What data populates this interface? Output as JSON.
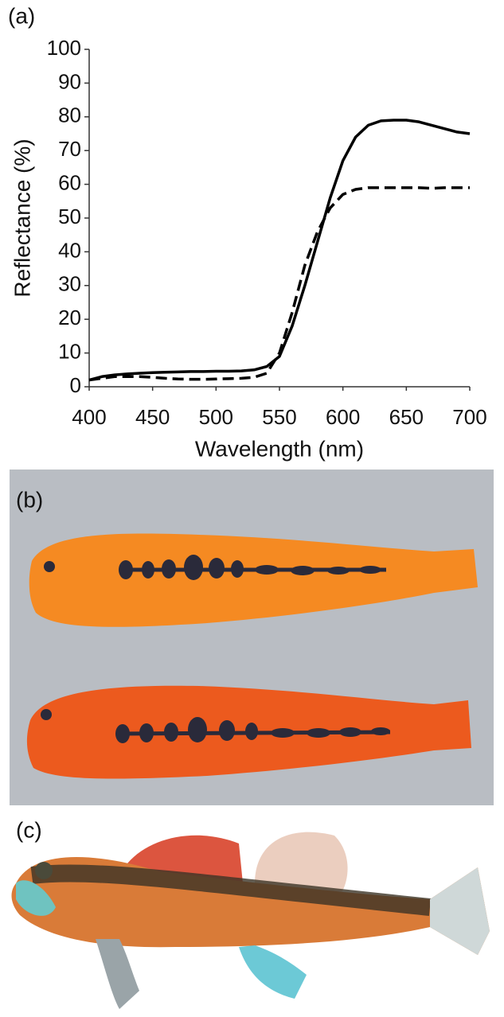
{
  "panel_labels": [
    "(a)",
    "(b)",
    "(c)"
  ],
  "chart_data": {
    "type": "line",
    "x_label": "Wavelength (nm)",
    "y_label": "Reflectance (%)",
    "x": [
      400,
      410,
      420,
      430,
      440,
      450,
      460,
      470,
      480,
      490,
      500,
      510,
      520,
      530,
      540,
      550,
      560,
      570,
      580,
      590,
      600,
      610,
      620,
      630,
      640,
      650,
      660,
      670,
      680,
      690,
      700
    ],
    "series": [
      {
        "color": "#000000",
        "line_style": "solid",
        "values": [
          2,
          3,
          3.5,
          3.8,
          4,
          4.2,
          4.3,
          4.4,
          4.5,
          4.5,
          4.6,
          4.6,
          4.7,
          5,
          6,
          9,
          18,
          30,
          43,
          56,
          67,
          74,
          77.5,
          78.8,
          79,
          79,
          78.5,
          77.5,
          76.5,
          75.5,
          75
        ]
      },
      {
        "color": "#000000",
        "line_style": "dashed",
        "values": [
          2,
          2.5,
          3,
          3,
          3,
          2.8,
          2.5,
          2.3,
          2.2,
          2.2,
          2.3,
          2.4,
          2.5,
          2.8,
          4,
          10,
          22,
          36,
          46,
          53,
          57,
          58.5,
          59,
          59,
          59,
          59,
          59,
          58.8,
          59,
          59,
          59
        ]
      }
    ],
    "xlim": [
      400,
      700
    ],
    "xticks": [
      400,
      450,
      500,
      550,
      600,
      650,
      700
    ],
    "ylim": [
      0,
      100
    ],
    "yticks": [
      0,
      10,
      20,
      30,
      40,
      50,
      60,
      70,
      80,
      90,
      100
    ]
  }
}
